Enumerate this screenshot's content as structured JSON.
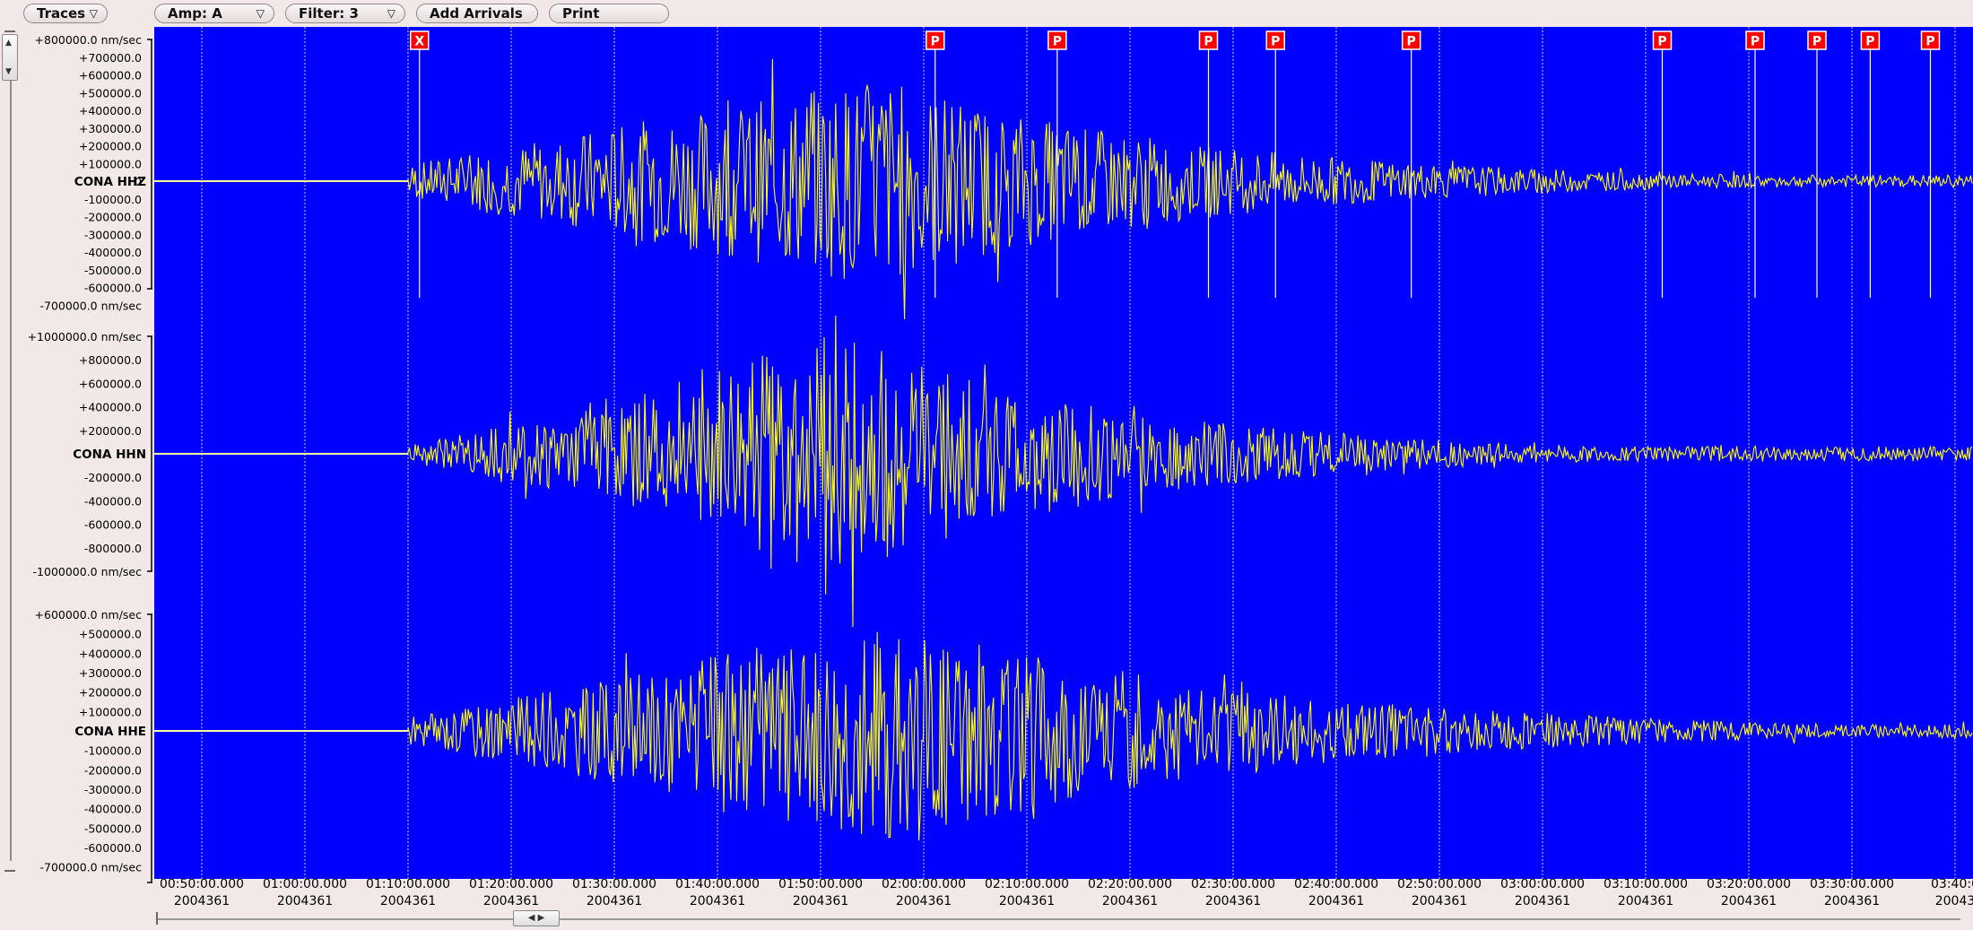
{
  "toolbar": {
    "traces_label": "Traces",
    "amp_label": "Amp: A",
    "filter_label": "Filter: 3",
    "add_arrivals_label": "Add Arrivals",
    "print_label": "Print"
  },
  "colors": {
    "plot_background": "#0000ff",
    "waveform": "#ffff00",
    "pick_marker": "#ff0000",
    "gridline": "#ffffff"
  },
  "icons": {
    "dropdown": "triangle-down-icon",
    "delete_pick": "x-icon"
  },
  "time_axis": {
    "day_label": "2004361",
    "ticks": [
      "00:50:00.000",
      "01:00:00.000",
      "01:10:00.000",
      "01:20:00.000",
      "01:30:00.000",
      "01:40:00.000",
      "01:50:00.000",
      "02:00:00.000",
      "02:10:00.000",
      "02:20:00.000",
      "02:30:00.000",
      "02:40:00.000",
      "02:50:00.000",
      "03:00:00.000",
      "03:10:00.000",
      "03:20:00.000",
      "03:30:00.000",
      "03:40:00.000"
    ],
    "last_tick_clipped": "03:40:0",
    "last_day_clipped": "20043"
  },
  "arrivals": [
    {
      "label": "X",
      "time": "01:10:30"
    },
    {
      "label": "P",
      "time": "02:00:30"
    },
    {
      "label": "P",
      "time": "02:12:20"
    },
    {
      "label": "P",
      "time": "02:27:00"
    },
    {
      "label": "P",
      "time": "02:33:30"
    },
    {
      "label": "P",
      "time": "02:46:40"
    },
    {
      "label": "P",
      "time": "03:11:00"
    },
    {
      "label": "P",
      "time": "03:20:00"
    },
    {
      "label": "P",
      "time": "03:26:00"
    },
    {
      "label": "P",
      "time": "03:31:10"
    },
    {
      "label": "P",
      "time": "03:37:00"
    }
  ],
  "traces": [
    {
      "name": "CONA HHZ",
      "unit": "nm/sec",
      "ticks": [
        "+800000.0 nm/sec",
        "+700000.0",
        "+600000.0",
        "+500000.0",
        "+400000.0",
        "+300000.0",
        "+200000.0",
        "+100000.0",
        "0",
        "-100000.0",
        "-200000.0",
        "-300000.0",
        "-400000.0",
        "-500000.0",
        "-600000.0",
        "-700000.0 nm/sec"
      ],
      "range": [
        -700000,
        800000
      ]
    },
    {
      "name": "CONA HHN",
      "unit": "nm/sec",
      "ticks": [
        "+1000000.0 nm/sec",
        "+800000.0",
        "+600000.0",
        "+400000.0",
        "+200000.0",
        "-200000.0",
        "-400000.0",
        "-600000.0",
        "-800000.0",
        "-1000000.0 nm/sec"
      ],
      "range": [
        -1000000,
        1000000
      ]
    },
    {
      "name": "CONA HHE",
      "unit": "nm/sec",
      "ticks": [
        "+600000.0 nm/sec",
        "+500000.0",
        "+400000.0",
        "+300000.0",
        "+200000.0",
        "+100000.0",
        "-100000.0",
        "-200000.0",
        "-300000.0",
        "-400000.0",
        "-500000.0",
        "-600000.0",
        "-700000.0 nm/sec"
      ],
      "range": [
        -700000,
        600000
      ]
    }
  ]
}
